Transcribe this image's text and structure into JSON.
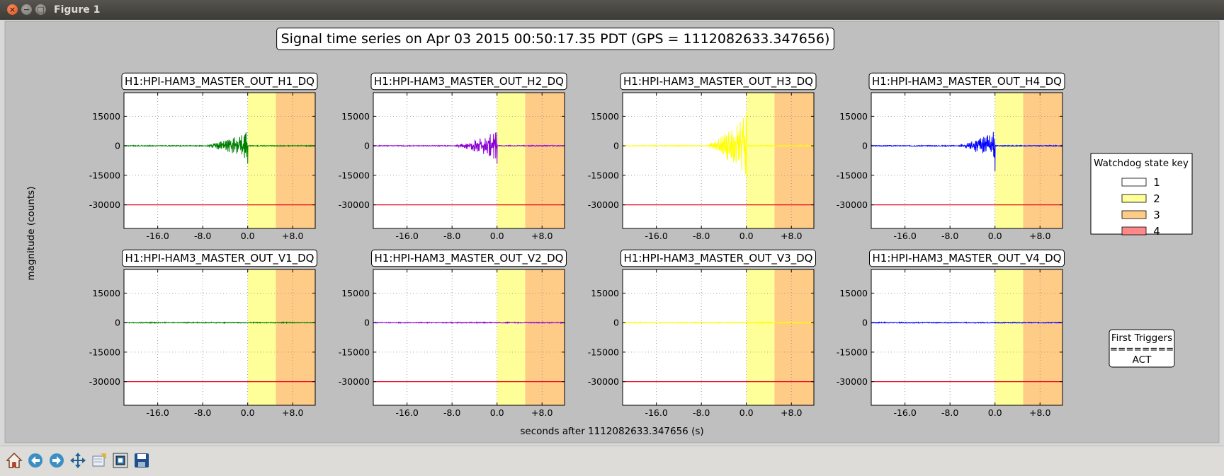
{
  "window": {
    "title": "Figure 1"
  },
  "figure": {
    "suptitle": "Signal time series on Apr 03 2015 00:50:17.35 PDT (GPS = 1112082633.347656)",
    "ylabel": "magnitude (counts)",
    "xlabel": "seconds after 1112082633.347656 (s)"
  },
  "legend": {
    "title": "Watchdog state key",
    "entries": [
      {
        "label": "1",
        "color": "#ffffff"
      },
      {
        "label": "2",
        "color": "#ffff99"
      },
      {
        "label": "3",
        "color": "#ffcc88"
      },
      {
        "label": "4",
        "color": "#ff8888"
      }
    ]
  },
  "triggers": {
    "title": "First Triggers",
    "separator": "========",
    "value": "ACT"
  },
  "chart_data": {
    "type": "line",
    "xlim": [
      -22,
      12
    ],
    "ylim": [
      -42000,
      27000
    ],
    "xticks": [
      -16,
      -8,
      0,
      8
    ],
    "xtick_labels": [
      "-16.0",
      "-8.0",
      "0.0",
      "+8.0"
    ],
    "yticks": [
      15000,
      0,
      -15000,
      -30000
    ],
    "ytick_labels": [
      "15000",
      "0",
      "-15000",
      "-30000"
    ],
    "grid": true,
    "state_regions": [
      {
        "state": "1",
        "x": [
          -22,
          0
        ],
        "color": "#ffffff"
      },
      {
        "state": "2",
        "x": [
          0,
          5
        ],
        "color": "#ffff99"
      },
      {
        "state": "3",
        "x": [
          5,
          12
        ],
        "color": "#ffcc88"
      }
    ],
    "threshold": {
      "y": -30000,
      "color": "#e8001a"
    },
    "panels": [
      {
        "title": "H1:HPI-HAM3_MASTER_OUT_H1_DQ",
        "color": "#008000",
        "burst": {
          "start": -8,
          "end": 0,
          "peak": 5000,
          "spike": -9000
        }
      },
      {
        "title": "H1:HPI-HAM3_MASTER_OUT_H2_DQ",
        "color": "#8b00d6",
        "burst": {
          "start": -8,
          "end": 0,
          "peak": 5000,
          "spike": -9000
        }
      },
      {
        "title": "H1:HPI-HAM3_MASTER_OUT_H3_DQ",
        "color": "#ffff00",
        "burst": {
          "start": -7.5,
          "end": 0,
          "peak": 11000,
          "spike": 17000
        }
      },
      {
        "title": "H1:HPI-HAM3_MASTER_OUT_H4_DQ",
        "color": "#0000ff",
        "burst": {
          "start": -7,
          "end": 0,
          "peak": 5000,
          "spike": -13000
        }
      },
      {
        "title": "H1:HPI-HAM3_MASTER_OUT_V1_DQ",
        "color": "#008000",
        "burst": null
      },
      {
        "title": "H1:HPI-HAM3_MASTER_OUT_V2_DQ",
        "color": "#8b00d6",
        "burst": null
      },
      {
        "title": "H1:HPI-HAM3_MASTER_OUT_V3_DQ",
        "color": "#ffff00",
        "burst": null
      },
      {
        "title": "H1:HPI-HAM3_MASTER_OUT_V4_DQ",
        "color": "#0000ff",
        "burst": null
      }
    ]
  }
}
